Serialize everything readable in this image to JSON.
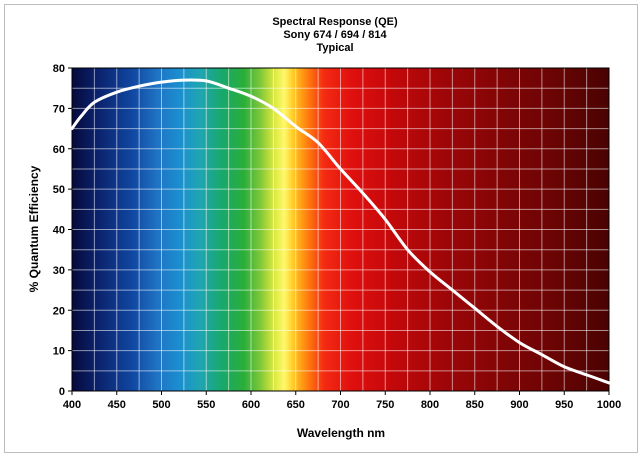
{
  "chart_data": {
    "type": "line",
    "title": [
      "Spectral Response (QE)",
      "Sony 674 / 694 / 814",
      "Typical"
    ],
    "xlabel": "Wavelength nm",
    "ylabel": "% Quantum Efficiency",
    "xlim": [
      400,
      1000
    ],
    "ylim": [
      0,
      80
    ],
    "x_ticks": [
      400,
      450,
      500,
      550,
      600,
      650,
      700,
      750,
      800,
      850,
      900,
      950,
      1000
    ],
    "y_ticks": [
      0,
      10,
      20,
      30,
      40,
      50,
      60,
      70,
      80
    ],
    "grid": true,
    "background": "visible-spectrum gradient",
    "series": [
      {
        "color": "#ffffff",
        "x": [
          400,
          410,
          425,
          450,
          475,
          500,
          525,
          550,
          575,
          600,
          625,
          650,
          675,
          700,
          725,
          750,
          775,
          800,
          825,
          850,
          875,
          900,
          925,
          950,
          975,
          1000
        ],
        "y": [
          65,
          68,
          71.5,
          74,
          75.5,
          76.5,
          77,
          76.8,
          75,
          73,
          70,
          65.5,
          61.5,
          55,
          49,
          42.5,
          35,
          29.5,
          25,
          20.5,
          16,
          12,
          9,
          6,
          4,
          2
        ]
      }
    ]
  }
}
